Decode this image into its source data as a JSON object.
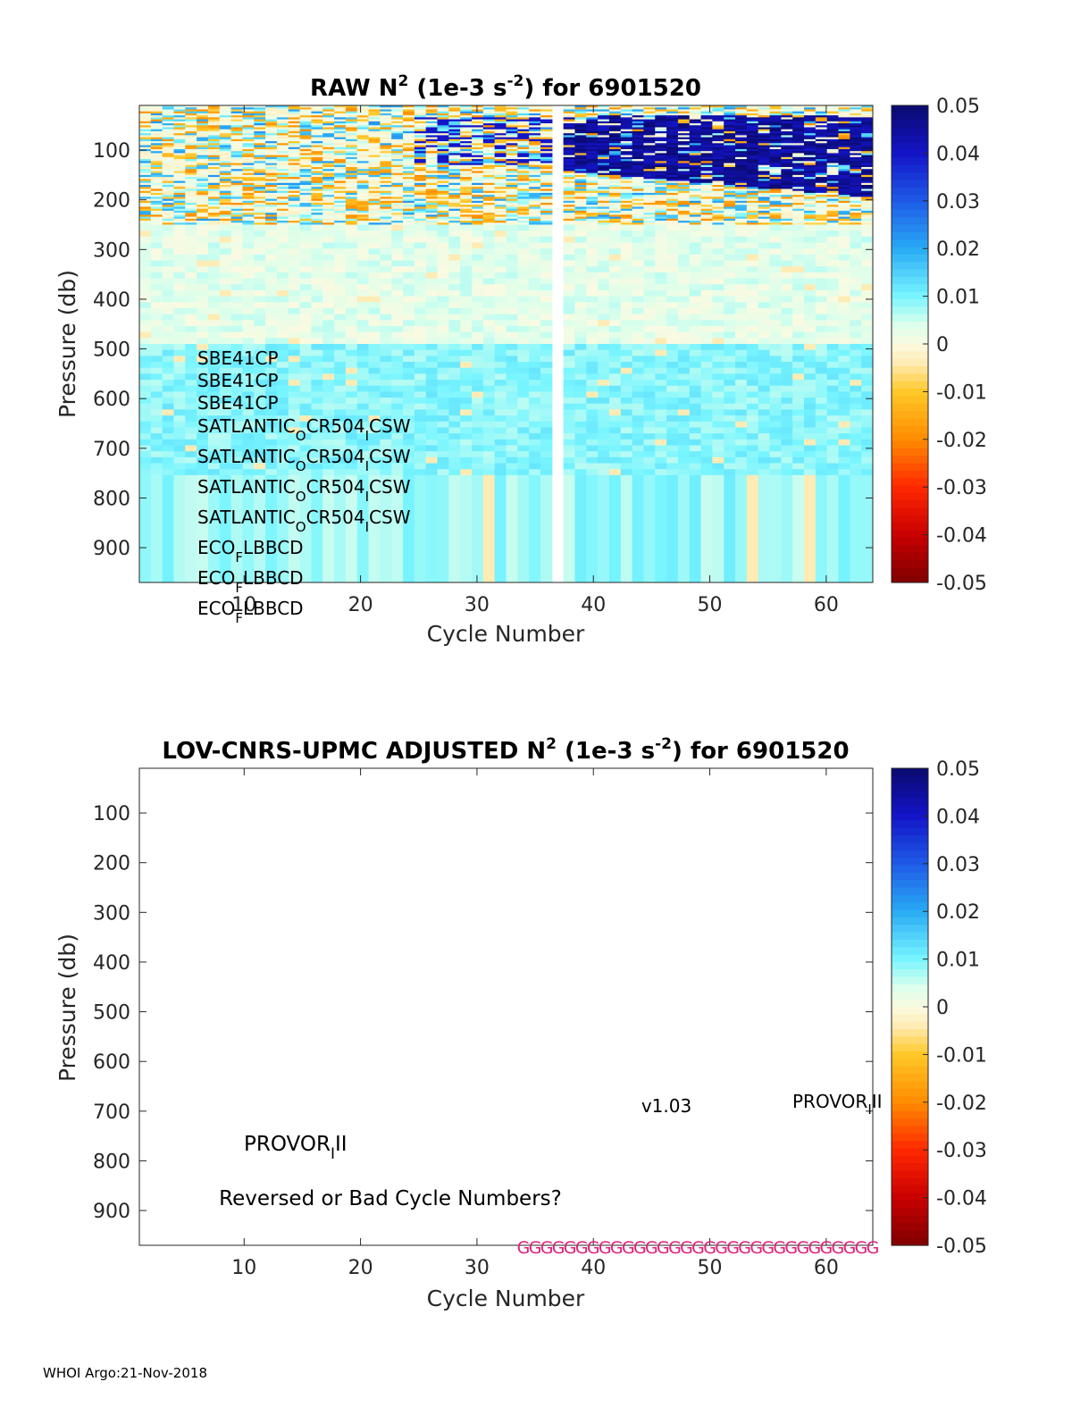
{
  "chart_data": [
    {
      "type": "heatmap",
      "title": {
        "pre": "RAW N",
        "sup1": "2",
        "mid": " (1e-3 s",
        "sup2": "-2",
        "post": ") for 6901520"
      },
      "xlabel": "Cycle Number",
      "ylabel": "Pressure (db)",
      "xlim": [
        1,
        64
      ],
      "ylim": [
        10,
        970
      ],
      "y_reversed": true,
      "xticks": [
        10,
        20,
        30,
        40,
        50,
        60
      ],
      "yticks": [
        100,
        200,
        300,
        400,
        500,
        600,
        700,
        800,
        900
      ],
      "clim": [
        -0.05,
        0.05
      ],
      "colorbar_ticks": [
        0.05,
        0.04,
        0.03,
        0.02,
        0.01,
        0,
        -0.01,
        -0.02,
        -0.03,
        -0.04,
        -0.05
      ],
      "colorbar_labels": [
        "0.05",
        "0.04",
        "0.03",
        "0.02",
        "0.01",
        "0",
        "-0.01",
        "-0.02",
        "-0.03",
        "-0.04",
        "-0.05"
      ],
      "missing_cycles": [
        37
      ],
      "cycle_depth_limits": [
        {
          "cycles": [
            1,
            36
          ],
          "max_pressure": 970
        },
        {
          "cycles": [
            38,
            64
          ],
          "max_pressure": 970
        }
      ],
      "layers": [
        {
          "pressure": [
            10,
            250
          ],
          "typical_value": 0.0,
          "description": "noisy surface layer"
        },
        {
          "pressure": [
            250,
            480
          ],
          "typical_value": 0.003
        },
        {
          "pressure": [
            480,
            750
          ],
          "typical_value": 0.009
        },
        {
          "pressure": [
            750,
            970
          ],
          "typical_value": 0.008
        }
      ],
      "strong_stratification": {
        "cycles": [
          38,
          64
        ],
        "pressure": [
          30,
          140
        ],
        "value": 0.05
      },
      "sensor_labels": [
        {
          "main": "SBE41CP"
        },
        {
          "main": "SBE41CP"
        },
        {
          "main": "SBE41CP"
        },
        {
          "a": "SATLANTIC",
          "s1": "O",
          "b": "CR504",
          "s2": "I",
          "c": "CSW"
        },
        {
          "a": "SATLANTIC",
          "s1": "O",
          "b": "CR504",
          "s2": "I",
          "c": "CSW"
        },
        {
          "a": "SATLANTIC",
          "s1": "O",
          "b": "CR504",
          "s2": "I",
          "c": "CSW"
        },
        {
          "a": "SATLANTIC",
          "s1": "O",
          "b": "CR504",
          "s2": "I",
          "c": "CSW"
        },
        {
          "a": "ECO",
          "s1": "F",
          "b": "LBBCD"
        },
        {
          "a": "ECO",
          "s1": "F",
          "b": "LBBCD"
        },
        {
          "a": "ECO",
          "s1": "F",
          "b": "LBBCD"
        }
      ]
    },
    {
      "type": "heatmap",
      "title": {
        "pre": "LOV-CNRS-UPMC  ADJUSTED N",
        "sup1": "2",
        "mid": " (1e-3 s",
        "sup2": "-2",
        "post": ") for 6901520"
      },
      "xlabel": "Cycle Number",
      "ylabel": "Pressure (db)",
      "xlim": [
        1,
        64
      ],
      "ylim": [
        10,
        970
      ],
      "y_reversed": true,
      "xticks": [
        10,
        20,
        30,
        40,
        50,
        60
      ],
      "yticks": [
        100,
        200,
        300,
        400,
        500,
        600,
        700,
        800,
        900
      ],
      "clim": [
        -0.05,
        0.05
      ],
      "colorbar_labels": [
        "0.05",
        "0.04",
        "0.03",
        "0.02",
        "0.01",
        "0",
        "-0.01",
        "-0.02",
        "-0.03",
        "-0.04",
        "-0.05"
      ],
      "values": [],
      "annotations": {
        "version": "v1.03",
        "platform_right": {
          "a": "PROVOR",
          "s": "I",
          "b": "II"
        },
        "platform_left": {
          "a": "PROVOR",
          "s": "I",
          "b": "II"
        },
        "warning": "Reversed or Bad Cycle Numbers?"
      },
      "qc_flags": {
        "cycles": [
          34,
          35,
          36,
          37,
          38,
          39,
          40,
          41,
          42,
          43,
          44,
          45,
          46,
          47,
          48,
          49,
          50,
          51,
          52,
          53,
          54,
          55,
          56,
          57,
          58,
          59,
          60,
          61,
          62,
          63,
          64
        ],
        "flag": "G",
        "color": "#e0207a"
      }
    }
  ],
  "footer": "WHOI Argo:21-Nov-2018"
}
